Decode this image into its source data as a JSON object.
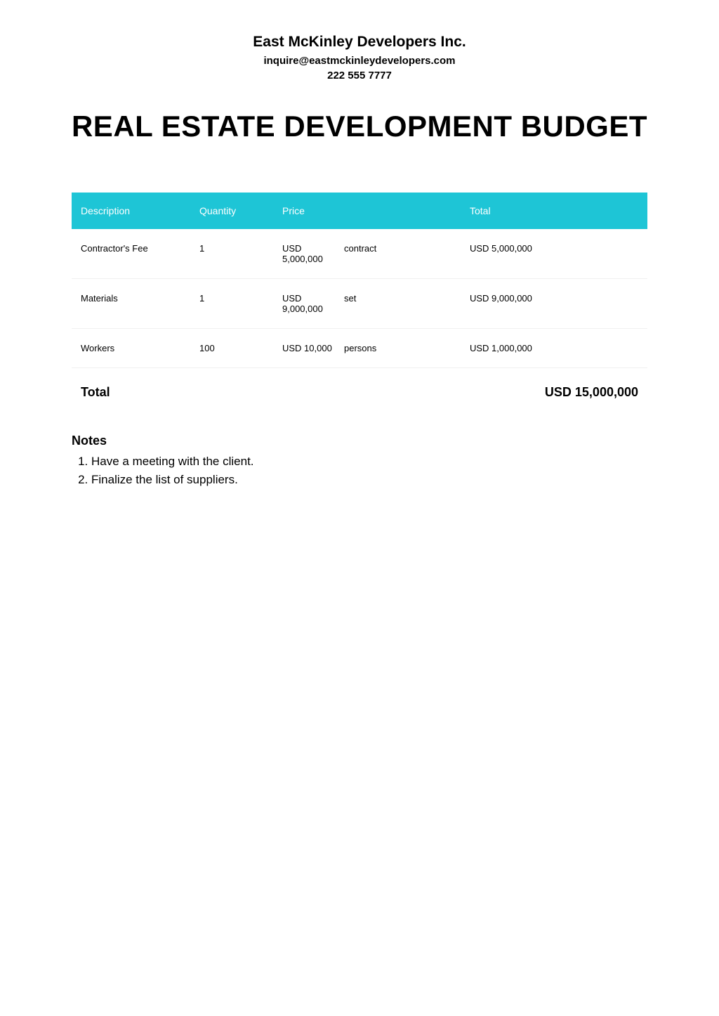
{
  "header": {
    "company_name": "East McKinley Developers Inc.",
    "email": "inquire@eastmckinleydevelopers.com",
    "phone": "222 555 7777"
  },
  "title": "REAL ESTATE DEVELOPMENT BUDGET",
  "table": {
    "columns": {
      "description": "Description",
      "quantity": "Quantity",
      "price": "Price",
      "total": "Total"
    },
    "header_bg": "#1ec5d6",
    "header_color": "#ffffff",
    "rows": [
      {
        "description": "Contractor's Fee",
        "quantity": "1",
        "price_amount": "USD 5,000,000",
        "price_unit": "contract",
        "total": "USD 5,000,000"
      },
      {
        "description": "Materials",
        "quantity": "1",
        "price_amount": "USD 9,000,000",
        "price_unit": "set",
        "total": "USD 9,000,000"
      },
      {
        "description": "Workers",
        "quantity": "100",
        "price_amount": "USD 10,000",
        "price_unit": "persons",
        "total": "USD 1,000,000"
      }
    ]
  },
  "grand_total": {
    "label": "Total",
    "value": "USD 15,000,000"
  },
  "notes": {
    "heading": "Notes",
    "items": [
      "Have a meeting with the client.",
      "Finalize the list of suppliers."
    ]
  }
}
